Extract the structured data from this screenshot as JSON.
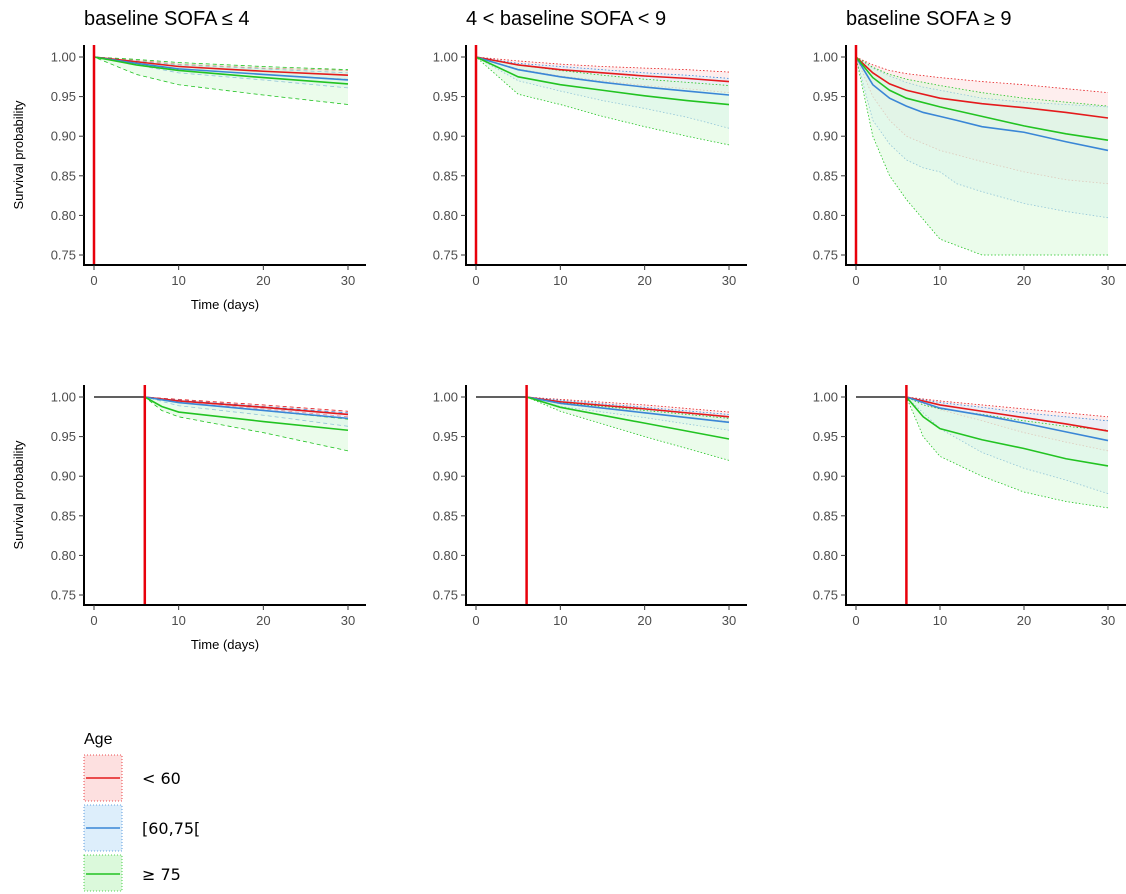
{
  "chart_data": [
    {
      "type": "line",
      "title": "baseline SOFA ≤ 4",
      "xlabel": "Time (days)",
      "ylabel": "Survival probability",
      "xlim": [
        0,
        30
      ],
      "ylim": [
        0.75,
        1.0
      ],
      "x_ticks": [
        "0",
        "10",
        "20",
        "30"
      ],
      "y_ticks": [
        "0.75",
        "0.80",
        "0.85",
        "0.90",
        "0.95",
        "1.00"
      ],
      "marker_day": 0,
      "band_style": "dashed",
      "series": [
        {
          "name": "< 60",
          "x": [
            0,
            5,
            10,
            20,
            30
          ],
          "y": [
            1.0,
            0.994,
            0.988,
            0.982,
            0.977
          ],
          "lower": [
            1.0,
            0.992,
            0.985,
            0.978,
            0.972
          ],
          "upper": [
            1.0,
            0.996,
            0.991,
            0.986,
            0.983
          ]
        },
        {
          "name": "[60,75[",
          "x": [
            0,
            5,
            10,
            20,
            30
          ],
          "y": [
            1.0,
            0.992,
            0.985,
            0.978,
            0.971
          ],
          "lower": [
            1.0,
            0.99,
            0.98,
            0.971,
            0.961
          ],
          "upper": [
            1.0,
            0.995,
            0.99,
            0.985,
            0.98
          ]
        },
        {
          "name": "≥ 75",
          "x": [
            0,
            5,
            10,
            20,
            30
          ],
          "y": [
            1.0,
            0.99,
            0.983,
            0.974,
            0.966
          ],
          "lower": [
            1.0,
            0.978,
            0.965,
            0.952,
            0.94
          ],
          "upper": [
            1.0,
            0.997,
            0.993,
            0.988,
            0.984
          ]
        }
      ]
    },
    {
      "type": "line",
      "title": "4 < baseline SOFA < 9",
      "xlabel": "",
      "ylabel": "",
      "xlim": [
        0,
        30
      ],
      "ylim": [
        0.75,
        1.0
      ],
      "x_ticks": [
        "0",
        "10",
        "20",
        "30"
      ],
      "y_ticks": [
        "0.75",
        "0.80",
        "0.85",
        "0.90",
        "0.95",
        "1.00"
      ],
      "marker_day": 0,
      "band_style": "dotted",
      "series": [
        {
          "name": "< 60",
          "x": [
            0,
            5,
            10,
            15,
            20,
            25,
            30
          ],
          "y": [
            1.0,
            0.99,
            0.984,
            0.98,
            0.976,
            0.973,
            0.969
          ],
          "lower": [
            1.0,
            0.985,
            0.976,
            0.97,
            0.964,
            0.96,
            0.955
          ],
          "upper": [
            1.0,
            0.995,
            0.991,
            0.988,
            0.986,
            0.984,
            0.981
          ]
        },
        {
          "name": "[60,75[",
          "x": [
            0,
            5,
            10,
            15,
            20,
            25,
            30
          ],
          "y": [
            1.0,
            0.984,
            0.975,
            0.968,
            0.962,
            0.957,
            0.952
          ],
          "lower": [
            1.0,
            0.97,
            0.957,
            0.945,
            0.935,
            0.924,
            0.91
          ],
          "upper": [
            1.0,
            0.992,
            0.988,
            0.984,
            0.98,
            0.977,
            0.973
          ]
        },
        {
          "name": "≥ 75",
          "x": [
            0,
            5,
            10,
            15,
            20,
            25,
            30
          ],
          "y": [
            1.0,
            0.975,
            0.965,
            0.958,
            0.951,
            0.945,
            0.94
          ],
          "lower": [
            1.0,
            0.953,
            0.94,
            0.925,
            0.912,
            0.9,
            0.889
          ],
          "upper": [
            1.0,
            0.99,
            0.983,
            0.977,
            0.972,
            0.968,
            0.964
          ]
        }
      ]
    },
    {
      "type": "line",
      "title": "baseline SOFA ≥ 9",
      "xlabel": "",
      "ylabel": "",
      "xlim": [
        0,
        30
      ],
      "ylim": [
        0.75,
        1.0
      ],
      "x_ticks": [
        "0",
        "10",
        "20",
        "30"
      ],
      "y_ticks": [
        "0.75",
        "0.80",
        "0.85",
        "0.90",
        "0.95",
        "1.00"
      ],
      "marker_day": 0,
      "band_style": "dotted",
      "series": [
        {
          "name": "< 60",
          "x": [
            0,
            2,
            4,
            6,
            10,
            15,
            20,
            25,
            30
          ],
          "y": [
            1.0,
            0.98,
            0.966,
            0.958,
            0.948,
            0.941,
            0.936,
            0.93,
            0.923
          ],
          "lower": [
            1.0,
            0.95,
            0.92,
            0.9,
            0.882,
            0.868,
            0.855,
            0.845,
            0.84
          ],
          "upper": [
            1.0,
            0.99,
            0.983,
            0.979,
            0.974,
            0.969,
            0.965,
            0.96,
            0.955
          ]
        },
        {
          "name": "[60,75[",
          "x": [
            0,
            2,
            4,
            6,
            8,
            10,
            12,
            15,
            20,
            25,
            30
          ],
          "y": [
            1.0,
            0.965,
            0.948,
            0.938,
            0.93,
            0.925,
            0.92,
            0.912,
            0.905,
            0.893,
            0.882
          ],
          "lower": [
            1.0,
            0.92,
            0.89,
            0.87,
            0.86,
            0.855,
            0.84,
            0.83,
            0.815,
            0.805,
            0.797
          ],
          "upper": [
            1.0,
            0.986,
            0.976,
            0.968,
            0.962,
            0.958,
            0.954,
            0.948,
            0.943,
            0.94,
            0.937
          ]
        },
        {
          "name": "≥ 75",
          "x": [
            0,
            2,
            4,
            6,
            10,
            15,
            20,
            25,
            30
          ],
          "y": [
            1.0,
            0.974,
            0.958,
            0.948,
            0.937,
            0.925,
            0.913,
            0.903,
            0.895
          ],
          "lower": [
            1.0,
            0.9,
            0.85,
            0.82,
            0.77,
            0.74,
            0.73,
            0.73,
            0.73
          ],
          "upper": [
            1.0,
            0.987,
            0.978,
            0.972,
            0.964,
            0.955,
            0.948,
            0.943,
            0.938
          ]
        }
      ]
    },
    {
      "type": "line",
      "title": "",
      "xlabel": "Time (days)",
      "ylabel": "Survival probability",
      "xlim": [
        0,
        30
      ],
      "ylim": [
        0.75,
        1.0
      ],
      "x_ticks": [
        "0",
        "10",
        "20",
        "30"
      ],
      "y_ticks": [
        "0.75",
        "0.80",
        "0.85",
        "0.90",
        "0.95",
        "1.00"
      ],
      "marker_day": 6,
      "band_style": "dashed",
      "series": [
        {
          "name": "< 60",
          "x": [
            0,
            6,
            10,
            20,
            30
          ],
          "y": [
            1.0,
            1.0,
            0.995,
            0.987,
            0.978
          ],
          "lower": [
            1.0,
            1.0,
            0.993,
            0.985,
            0.975
          ],
          "upper": [
            1.0,
            1.0,
            0.997,
            0.99,
            0.982
          ]
        },
        {
          "name": "[60,75[",
          "x": [
            0,
            6,
            10,
            20,
            30
          ],
          "y": [
            1.0,
            1.0,
            0.993,
            0.983,
            0.973
          ],
          "lower": [
            1.0,
            1.0,
            0.989,
            0.977,
            0.963
          ],
          "upper": [
            1.0,
            1.0,
            0.996,
            0.988,
            0.98
          ]
        },
        {
          "name": "≥ 75",
          "x": [
            0,
            6,
            8,
            10,
            20,
            30
          ],
          "y": [
            1.0,
            1.0,
            0.988,
            0.981,
            0.969,
            0.958
          ],
          "lower": [
            1.0,
            1.0,
            0.983,
            0.975,
            0.955,
            0.932
          ],
          "upper": [
            1.0,
            1.0,
            0.996,
            0.993,
            0.983,
            0.972
          ]
        }
      ]
    },
    {
      "type": "line",
      "title": "",
      "xlabel": "",
      "ylabel": "",
      "xlim": [
        0,
        30
      ],
      "ylim": [
        0.75,
        1.0
      ],
      "x_ticks": [
        "0",
        "10",
        "20",
        "30"
      ],
      "y_ticks": [
        "0.75",
        "0.80",
        "0.85",
        "0.90",
        "0.95",
        "1.00"
      ],
      "marker_day": 6,
      "band_style": "dotted",
      "series": [
        {
          "name": "< 60",
          "x": [
            0,
            6,
            10,
            20,
            30
          ],
          "y": [
            1.0,
            1.0,
            0.994,
            0.985,
            0.975
          ],
          "lower": [
            1.0,
            1.0,
            0.991,
            0.98,
            0.969
          ],
          "upper": [
            1.0,
            1.0,
            0.997,
            0.99,
            0.981
          ]
        },
        {
          "name": "[60,75[",
          "x": [
            0,
            6,
            10,
            20,
            30
          ],
          "y": [
            1.0,
            1.0,
            0.992,
            0.98,
            0.968
          ],
          "lower": [
            1.0,
            1.0,
            0.988,
            0.974,
            0.958
          ],
          "upper": [
            1.0,
            1.0,
            0.996,
            0.987,
            0.978
          ]
        },
        {
          "name": "≥ 75",
          "x": [
            0,
            6,
            10,
            20,
            30
          ],
          "y": [
            1.0,
            1.0,
            0.987,
            0.967,
            0.947
          ],
          "lower": [
            1.0,
            1.0,
            0.982,
            0.95,
            0.92
          ],
          "upper": [
            1.0,
            1.0,
            0.993,
            0.983,
            0.973
          ]
        }
      ]
    },
    {
      "type": "line",
      "title": "",
      "xlabel": "",
      "ylabel": "",
      "xlim": [
        0,
        30
      ],
      "ylim": [
        0.75,
        1.0
      ],
      "x_ticks": [
        "0",
        "10",
        "20",
        "30"
      ],
      "y_ticks": [
        "0.75",
        "0.80",
        "0.85",
        "0.90",
        "0.95",
        "1.00"
      ],
      "marker_day": 6,
      "band_style": "dotted",
      "series": [
        {
          "name": "< 60",
          "x": [
            0,
            6,
            10,
            15,
            20,
            25,
            30
          ],
          "y": [
            1.0,
            1.0,
            0.99,
            0.982,
            0.974,
            0.966,
            0.957
          ],
          "lower": [
            1.0,
            1.0,
            0.984,
            0.97,
            0.955,
            0.943,
            0.932
          ],
          "upper": [
            1.0,
            1.0,
            0.995,
            0.99,
            0.985,
            0.98,
            0.975
          ]
        },
        {
          "name": "[60,75[",
          "x": [
            0,
            6,
            10,
            15,
            20,
            25,
            30
          ],
          "y": [
            1.0,
            1.0,
            0.986,
            0.977,
            0.967,
            0.956,
            0.945
          ],
          "lower": [
            1.0,
            1.0,
            0.96,
            0.93,
            0.91,
            0.895,
            0.878
          ],
          "upper": [
            1.0,
            1.0,
            0.993,
            0.987,
            0.98,
            0.975,
            0.97
          ]
        },
        {
          "name": "≥ 75",
          "x": [
            0,
            6,
            8,
            10,
            15,
            20,
            25,
            30
          ],
          "y": [
            1.0,
            1.0,
            0.975,
            0.96,
            0.946,
            0.935,
            0.922,
            0.913
          ],
          "lower": [
            1.0,
            1.0,
            0.95,
            0.925,
            0.9,
            0.88,
            0.868,
            0.86
          ],
          "upper": [
            1.0,
            1.0,
            0.99,
            0.985,
            0.978,
            0.97,
            0.963,
            0.958
          ]
        }
      ]
    }
  ],
  "legend": {
    "title": "Age",
    "items": [
      {
        "label": "< 60",
        "color": "#e41a1c",
        "fill": "#fde0e0"
      },
      {
        "label": "[60,75[",
        "color": "#3a86d6",
        "fill": "#ddeefb"
      },
      {
        "label": "≥ 75",
        "color": "#22c322",
        "fill": "#dbf9db"
      }
    ]
  },
  "colors": {
    "series": [
      "#e41a1c",
      "#3a86d6",
      "#22c322"
    ],
    "fills": [
      "#fde0e0",
      "#ddeefb",
      "#dbf9db"
    ],
    "marker_line": "#e8000b"
  }
}
